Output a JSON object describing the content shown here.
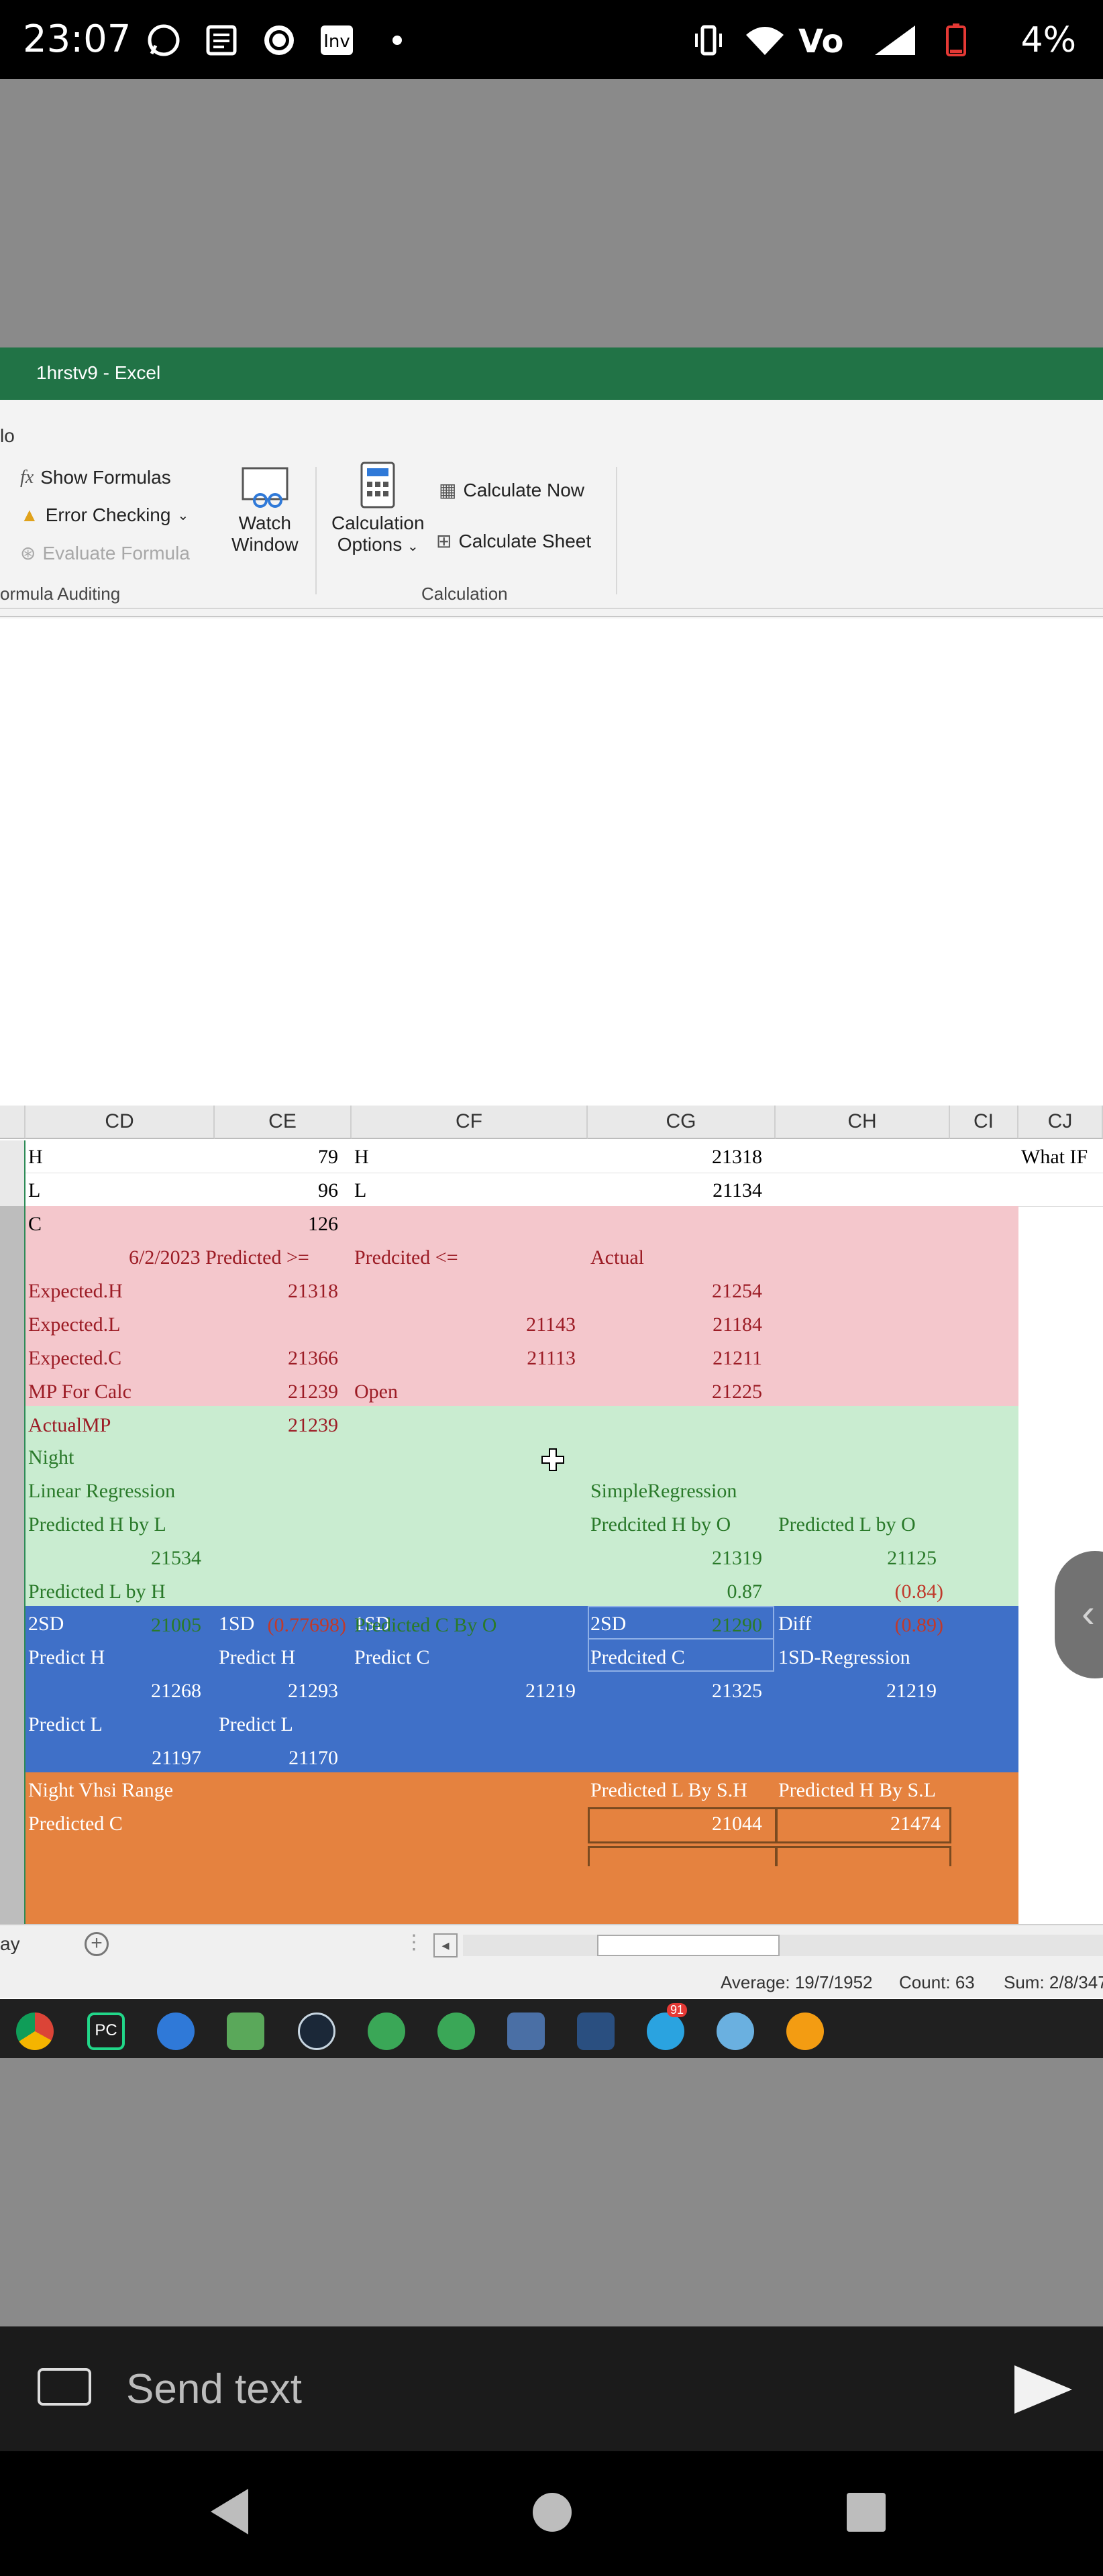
{
  "status_bar": {
    "time": "23:07",
    "battery": "4%",
    "icons": [
      "whatsapp-icon",
      "notes-icon",
      "chat-icon",
      "investing-icon",
      "dot-icon",
      "vibrate-icon",
      "wifi-icon",
      "volte-icon",
      "signal-icon",
      "battery-icon"
    ]
  },
  "window": {
    "title": "1hrstv9  -  Excel",
    "tab_fragment": "lo"
  },
  "ribbon": {
    "show_formulas": "Show Formulas",
    "error_checking": "Error Checking",
    "evaluate_formula": "Evaluate Formula",
    "watch_window_1": "Watch",
    "watch_window_2": "Window",
    "calc_options_1": "Calculation",
    "calc_options_2": "Options",
    "calculate_now": "Calculate Now",
    "calculate_sheet": "Calculate Sheet",
    "group_auditing": "ormula Auditing",
    "group_calculation": "Calculation"
  },
  "grid": {
    "columns": [
      "CD",
      "CE",
      "CF",
      "CG",
      "CH",
      "CI",
      "CJ"
    ],
    "rows": {
      "r1": {
        "cd": "H",
        "ce": "79",
        "cf": "H",
        "cg": "21318",
        "cj": "What IF"
      },
      "r2": {
        "cd": "L",
        "ce": "96",
        "cf": "L",
        "cg": "21134"
      },
      "r3": {
        "cd": "C",
        "ce": "126"
      },
      "r4": {
        "cd": "6/2/2023 Predicted >=",
        "cf": "Predcited <=",
        "cg": "Actual"
      },
      "r5": {
        "cd": "Expected.H",
        "ce": "21318",
        "cg": "21254"
      },
      "r6": {
        "cd": "Expected.L",
        "cf": "21143",
        "cg": "21184"
      },
      "r7": {
        "cd": "Expected.C",
        "ce": "21366",
        "cf": "21113",
        "cg": "21211"
      },
      "r8": {
        "cd": "MP For Calc",
        "ce": "21239",
        "cf": "Open",
        "cg": "21225"
      },
      "r9": {
        "cd": "ActualMP",
        "ce": "21239"
      },
      "r10": {
        "cd": "Night"
      },
      "r11": {
        "cd": "Linear Regression",
        "cg": "SimpleRegression"
      },
      "r12": {
        "cd": "Predicted H by L",
        "cg": "Predcited H by O",
        "ch": "Predicted L by O"
      },
      "r13": {
        "cd": "21534",
        "cg": "21319",
        "ch": "21125"
      },
      "r14": {
        "cd": "Predicted L by H",
        "cg": "0.87",
        "ch": "(0.84)"
      },
      "r15": {
        "cd": "21005",
        "ce": "(0.77698)",
        "cf": "Predicted C By O",
        "cg": "21290",
        "ch": "(0.89)"
      },
      "r16": {
        "cd": "2SD",
        "ce": "1SD",
        "cf": "1SD",
        "cg": "2SD",
        "ch": "Diff"
      },
      "r17": {
        "cd": "Predict H",
        "ce": "Predict H",
        "cf": "Predict C",
        "cg": "Predcited C",
        "ch": "1SD-Regression"
      },
      "r18": {
        "cd": "21268",
        "ce": "21293",
        "cf": "21219",
        "cg": "21325",
        "ch": "21219"
      },
      "r19": {
        "cd": "Predict L",
        "ce": "Predict L"
      },
      "r20": {
        "cd": "21197",
        "ce": "21170"
      },
      "r21": {
        "cd": "Night Vhsi Range",
        "cg": "Predicted L By S.H",
        "ch": "Predicted H By S.L"
      },
      "r22": {
        "cd": "Predicted C",
        "cg": "21044",
        "ch": "21474"
      }
    },
    "colors": {
      "pink": "#f4c7cc",
      "green": "#c9ecd0",
      "blue": "#3f70c8",
      "orange": "#e5823f",
      "red_text": "#9c1c25",
      "green_text": "#2a7a2a",
      "neg_text": "#c0392b"
    }
  },
  "sheet_tabs": {
    "fragment": "ay"
  },
  "statusbar_excel": {
    "average": "Average: 19/7/1952",
    "count": "Count: 63",
    "sum": "Sum: 2/8/347"
  },
  "taskbar_icons": [
    "chrome-icon",
    "pycharm-icon",
    "app-icon",
    "notepad-icon",
    "steam-icon",
    "c-icon",
    "c2-icon",
    "calculator-icon",
    "chart-icon",
    "telegram-icon",
    "paint-icon",
    "camera-icon"
  ],
  "telegram_badge": "91",
  "send_bar": {
    "placeholder": "Send text"
  }
}
